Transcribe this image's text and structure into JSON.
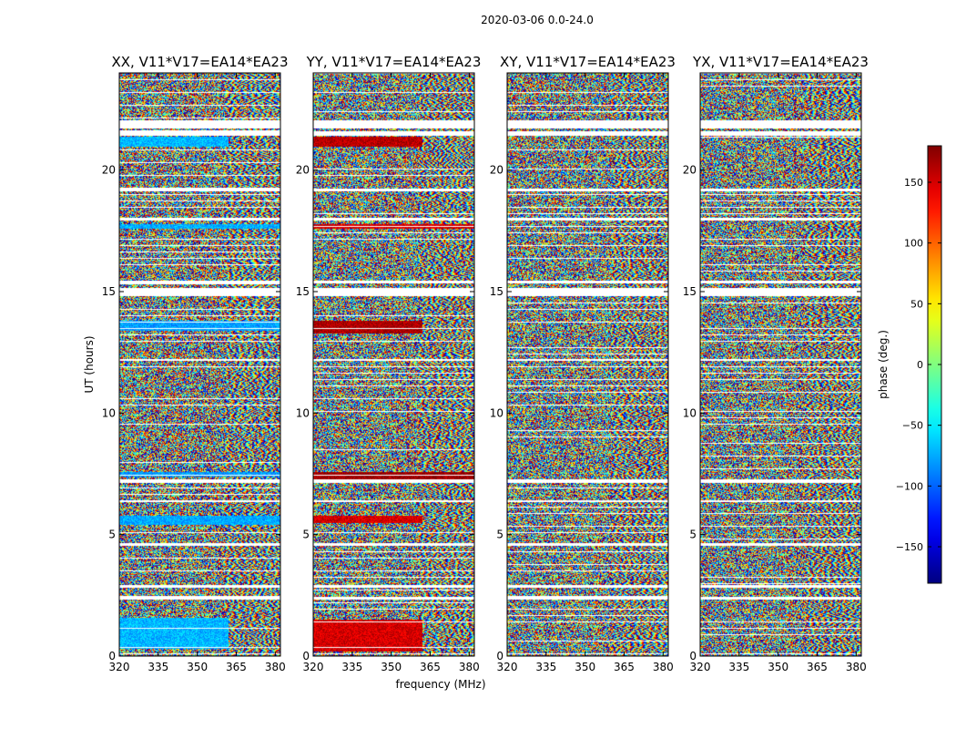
{
  "figure_title": "2020-03-06 0.0-24.0",
  "chart_data": {
    "type": "heatmap",
    "suptitle": "2020-03-06 0.0-24.0",
    "panels": [
      {
        "title": "XX, V11*V17=EA14*EA23",
        "pol": "XX",
        "bands": [
          {
            "t0": 0.3,
            "t1": 1.6,
            "f1": 362,
            "phase": -70
          },
          {
            "t0": 5.4,
            "t1": 5.8,
            "f1": 382,
            "phase": -75
          },
          {
            "t0": 13.4,
            "t1": 13.8,
            "f1": 382,
            "phase": -78
          },
          {
            "t0": 17.6,
            "t1": 17.8,
            "f1": 382,
            "phase": -72
          },
          {
            "t0": 21.0,
            "t1": 21.4,
            "f1": 362,
            "phase": -70
          },
          {
            "t0": 7.4,
            "t1": 7.6,
            "f1": 382,
            "phase": -80
          }
        ]
      },
      {
        "title": "YY, V11*V17=EA14*EA23",
        "pol": "YY",
        "bands": [
          {
            "t0": 0.2,
            "t1": 1.5,
            "f1": 362,
            "phase": 150
          },
          {
            "t0": 5.5,
            "t1": 5.8,
            "f1": 362,
            "phase": 150
          },
          {
            "t0": 7.3,
            "t1": 7.6,
            "f1": 382,
            "phase": 172
          },
          {
            "t0": 13.3,
            "t1": 13.8,
            "f1": 362,
            "phase": 165
          },
          {
            "t0": 21.0,
            "t1": 21.4,
            "f1": 362,
            "phase": 160
          },
          {
            "t0": 17.6,
            "t1": 17.8,
            "f1": 382,
            "phase": 150
          }
        ]
      },
      {
        "title": "XY, V11*V17=EA14*EA23",
        "pol": "XY",
        "bands": []
      },
      {
        "title": "YX, V11*V17=EA14*EA23",
        "pol": "YX",
        "bands": []
      }
    ],
    "x": {
      "label": "frequency (MHz)",
      "range": [
        320,
        382
      ],
      "ticks": [
        320,
        335,
        350,
        365,
        380
      ],
      "tick_labels": [
        "320",
        "335",
        "350",
        "365",
        "380"
      ]
    },
    "y": {
      "label": "UT (hours)",
      "range": [
        0,
        24
      ],
      "ticks": [
        0,
        5,
        10,
        15,
        20
      ],
      "tick_labels": [
        "0",
        "5",
        "10",
        "15",
        "20"
      ]
    },
    "colorbar": {
      "label": "phase (deg.)",
      "colormap": "jet",
      "range": [
        -180,
        180
      ],
      "ticks": [
        -150,
        -100,
        -50,
        0,
        50,
        100,
        150
      ],
      "tick_labels": [
        "−150",
        "−100",
        "−50",
        "0",
        "50",
        "100",
        "150"
      ]
    },
    "flagged_gaps_hours": [
      [
        2.35,
        2.45
      ],
      [
        2.85,
        2.95
      ],
      [
        4.55,
        4.65
      ],
      [
        6.35,
        6.45
      ],
      [
        7.15,
        7.3
      ],
      [
        12.15,
        12.25
      ],
      [
        14.85,
        15.15
      ],
      [
        15.35,
        15.45
      ],
      [
        17.95,
        18.05
      ],
      [
        21.45,
        21.6
      ],
      [
        21.75,
        22.05
      ],
      [
        19.15,
        19.25
      ]
    ]
  }
}
